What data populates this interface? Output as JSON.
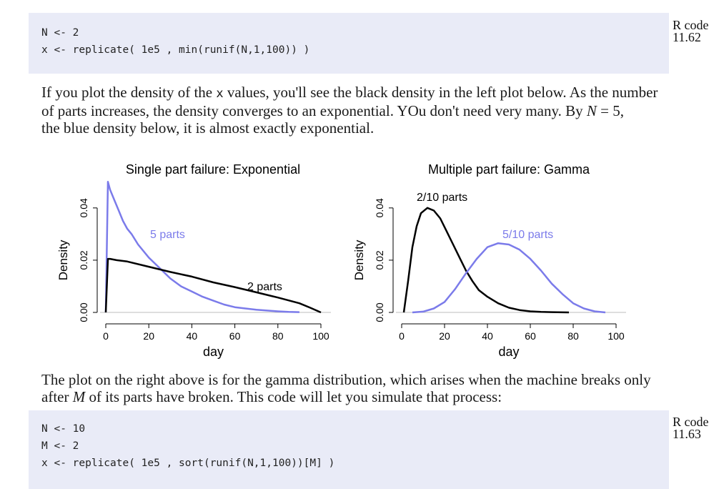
{
  "code1": {
    "lines": [
      "N <- 2",
      "x <- replicate( 1e5 , min(runif(N,1,100)) )"
    ],
    "label_line1": "R code",
    "label_line2": "11.62"
  },
  "para1": {
    "line1_a": "If you plot the density of the ",
    "line1_x": "x",
    "line1_b": " values, you'll see the black density in the left plot below. As the number",
    "line2": "of parts increases, the density converges to an exponential.  YOu don't need very many.  By ",
    "line2_var": "N",
    "line2_eq": " = 5,",
    "line3": "the blue density below, it is almost exactly exponential."
  },
  "chart_data": [
    {
      "type": "line",
      "title": "Single part failure: Exponential",
      "xlabel": "day",
      "ylabel": "Density",
      "xticks": [
        "0",
        "20",
        "40",
        "60",
        "80",
        "100"
      ],
      "yticks": [
        "0.00",
        "0.02",
        "0.04"
      ],
      "xlim": [
        0,
        100
      ],
      "ylim": [
        0,
        0.052
      ],
      "series": [
        {
          "name": "5 parts",
          "color": "#7b7bea",
          "x": [
            0,
            1,
            2,
            4,
            6,
            8,
            10,
            12,
            15,
            20,
            25,
            30,
            35,
            40,
            45,
            50,
            55,
            60,
            65,
            70,
            75,
            80,
            85,
            90
          ],
          "y": [
            0.0,
            0.05,
            0.047,
            0.043,
            0.039,
            0.035,
            0.032,
            0.03,
            0.026,
            0.021,
            0.017,
            0.013,
            0.01,
            0.008,
            0.006,
            0.0045,
            0.003,
            0.002,
            0.0015,
            0.001,
            0.0007,
            0.0004,
            0.0002,
            0.0001
          ]
        },
        {
          "name": "2 parts",
          "color": "#000000",
          "x": [
            0,
            1,
            2,
            5,
            10,
            20,
            30,
            40,
            50,
            60,
            70,
            80,
            90,
            95,
            100
          ],
          "y": [
            0.0,
            0.0205,
            0.0205,
            0.02,
            0.0195,
            0.0175,
            0.0155,
            0.0137,
            0.0115,
            0.0097,
            0.0077,
            0.0057,
            0.0035,
            0.0018,
            0.0
          ]
        }
      ],
      "annotations": [
        "5 parts",
        "2 parts"
      ]
    },
    {
      "type": "line",
      "title": "Multiple part failure: Gamma",
      "xlabel": "day",
      "ylabel": "Density",
      "xticks": [
        "0",
        "20",
        "40",
        "60",
        "80",
        "100"
      ],
      "yticks": [
        "0.00",
        "0.02",
        "0.04"
      ],
      "xlim": [
        0,
        100
      ],
      "ylim": [
        0,
        0.052
      ],
      "series": [
        {
          "name": "2/10 parts",
          "color": "#000000",
          "x": [
            1,
            3,
            5,
            7,
            9,
            12,
            15,
            18,
            21,
            24,
            27,
            30,
            33,
            36,
            40,
            45,
            50,
            55,
            60,
            65,
            70,
            78
          ],
          "y": [
            0.0,
            0.012,
            0.025,
            0.033,
            0.038,
            0.04,
            0.039,
            0.036,
            0.031,
            0.026,
            0.021,
            0.016,
            0.012,
            0.0085,
            0.006,
            0.0035,
            0.0018,
            0.0009,
            0.0004,
            0.0002,
            0.0001,
            0.0
          ]
        },
        {
          "name": "5/10 parts",
          "color": "#7b7bea",
          "x": [
            5,
            10,
            15,
            20,
            25,
            30,
            35,
            40,
            45,
            50,
            55,
            60,
            65,
            70,
            75,
            80,
            85,
            90,
            95
          ],
          "y": [
            0.0,
            0.0003,
            0.0015,
            0.004,
            0.009,
            0.015,
            0.0205,
            0.025,
            0.0265,
            0.026,
            0.024,
            0.0205,
            0.016,
            0.011,
            0.007,
            0.0035,
            0.0015,
            0.0004,
            0.0
          ]
        }
      ],
      "annotations": [
        "2/10 parts",
        "5/10 parts"
      ]
    }
  ],
  "para2": {
    "line1": "The plot on the right above is for the gamma distribution, which arises when the machine breaks only",
    "line2_a": "after ",
    "line2_var": "M",
    "line2_b": " of its parts have broken. This code will let you simulate that process:"
  },
  "code2": {
    "lines": [
      "N <- 10",
      "M <- 2",
      "x <- replicate( 1e5 , sort(runif(N,1,100))[M] )"
    ],
    "label_line1": "R code",
    "label_line2": "11.63"
  }
}
